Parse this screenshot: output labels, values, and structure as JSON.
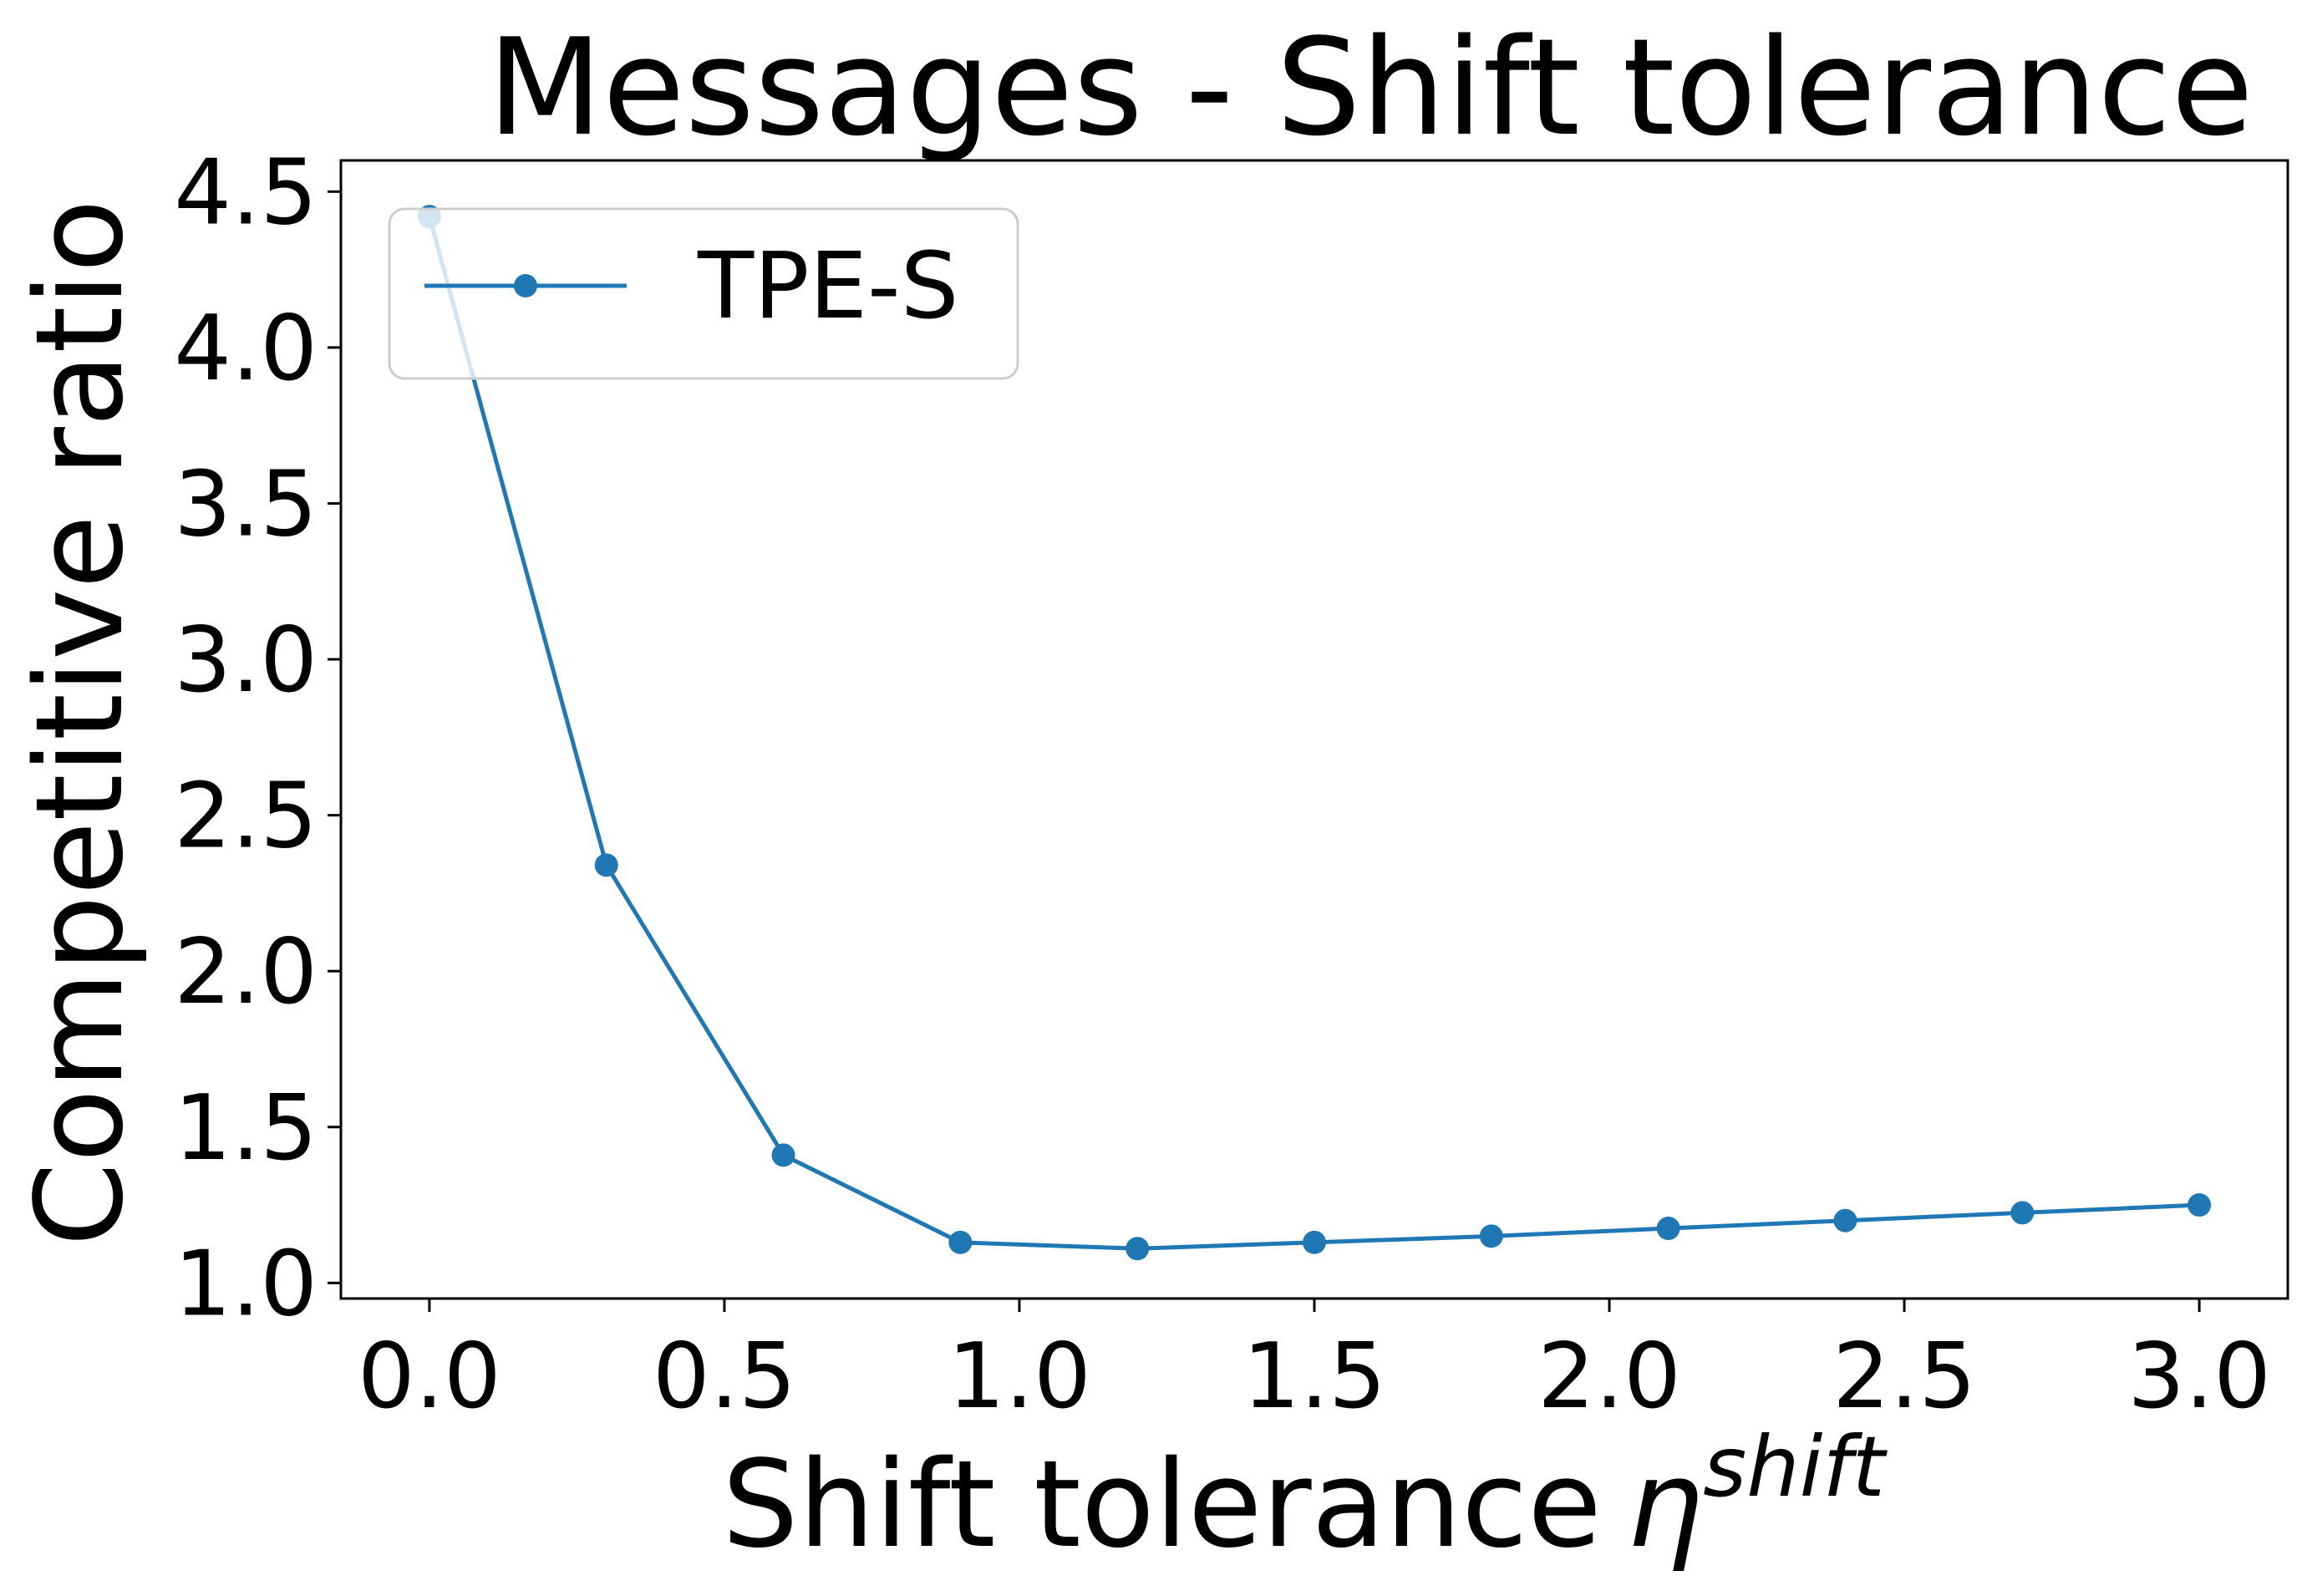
{
  "chart_data": {
    "type": "line",
    "title": "Messages - Shift tolerance",
    "xlabel": "Shift tolerance",
    "xlabel_symbol": "η",
    "xlabel_superscript": "shift",
    "ylabel": "Competitive ratio",
    "xlim": [
      -0.15,
      3.15
    ],
    "ylim": [
      0.95,
      4.6
    ],
    "xticks": [
      "0.0",
      "0.5",
      "1.0",
      "1.5",
      "2.0",
      "2.5",
      "3.0"
    ],
    "yticks": [
      "1.0",
      "1.5",
      "2.0",
      "2.5",
      "3.0",
      "3.5",
      "4.0",
      "4.5"
    ],
    "grid": false,
    "legend_position": "top-left",
    "series": [
      {
        "name": "TPE-S",
        "color": "#1f77b4",
        "marker": "circle",
        "x": [
          0.0,
          0.3,
          0.6,
          0.9,
          1.2,
          1.5,
          1.8,
          2.1,
          2.4,
          2.7,
          3.0
        ],
        "y": [
          4.42,
          2.34,
          1.41,
          1.13,
          1.11,
          1.13,
          1.15,
          1.175,
          1.2,
          1.225,
          1.25
        ]
      }
    ]
  }
}
